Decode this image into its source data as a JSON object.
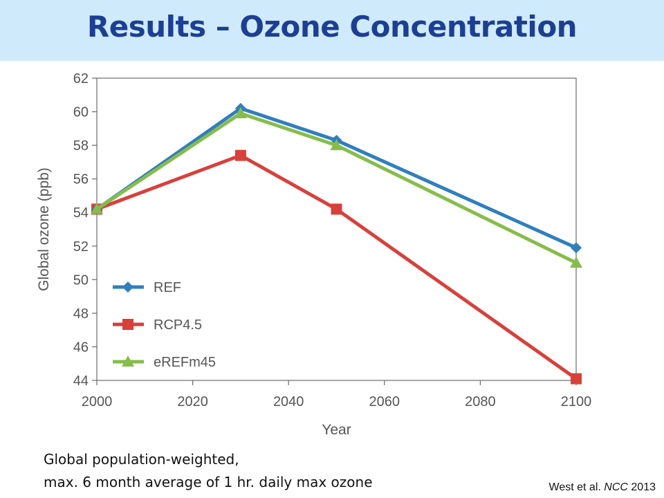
{
  "slide": {
    "title": "Results – Ozone Concentration",
    "caption_line1": "Global population-weighted,",
    "caption_line2": "max. 6 month average of 1 hr. daily max ozone",
    "source_authors": "West et al.",
    "source_journal": "NCC",
    "source_year": "2013"
  },
  "chart_data": {
    "type": "line",
    "xlabel": "Year",
    "ylabel": "Global ozone (ppb)",
    "xlim": [
      2000,
      2100
    ],
    "ylim": [
      44,
      62
    ],
    "xticks": [
      2000,
      2020,
      2040,
      2060,
      2080,
      2100
    ],
    "yticks": [
      44,
      46,
      48,
      50,
      52,
      54,
      56,
      58,
      60,
      62
    ],
    "grid": false,
    "legend_position": "bottom-left",
    "series": [
      {
        "name": "REF",
        "color": "#2f7fbf",
        "marker": "diamond",
        "x": [
          2000,
          2030,
          2050,
          2100
        ],
        "y": [
          54.2,
          60.2,
          58.3,
          51.9
        ]
      },
      {
        "name": "RCP4.5",
        "color": "#d9403a",
        "marker": "square",
        "x": [
          2000,
          2030,
          2050,
          2100
        ],
        "y": [
          54.2,
          57.4,
          54.2,
          44.1
        ]
      },
      {
        "name": "eREFm45",
        "color": "#86bd4a",
        "marker": "triangle",
        "x": [
          2000,
          2030,
          2050,
          2100
        ],
        "y": [
          54.2,
          59.9,
          58.0,
          51.0
        ]
      }
    ]
  }
}
